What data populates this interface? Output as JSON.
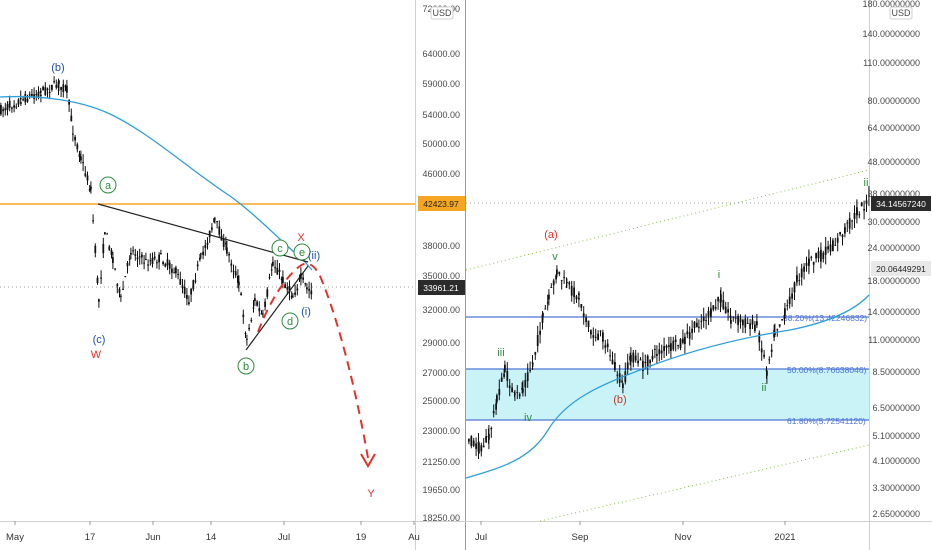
{
  "colors": {
    "ma": "#2e9fd8",
    "resistance": "#f5a623",
    "channel": "#8bc34a",
    "wave_green": "#2e8b3d",
    "wave_blue": "#1f4ea8",
    "wave_red": "#e0342b",
    "fib_fill": "#c9f3f7",
    "fib_line": "#4f74d6",
    "price_badge": "#2b2b2b"
  },
  "chart_data": [
    {
      "type": "line",
      "currency": "USD",
      "x_ticks": [
        "May",
        "17",
        "Jun",
        "14",
        "Jul",
        "19",
        "Au"
      ],
      "y_ticks": [
        "72000.00",
        "64000.00",
        "59000.00",
        "54000.00",
        "50000.00",
        "46000.00",
        "42423.97",
        "38000.00",
        "35000.00",
        "33961.21",
        "32000.00",
        "29000.00",
        "27000.00",
        "25000.00",
        "23000.00",
        "21250.00",
        "19650.00",
        "18250.00"
      ],
      "price_labels": {
        "resistance": "42423.97",
        "last": "33961.21"
      },
      "wave_labels": {
        "b_top": "(b)",
        "c": "(c)",
        "W": "W",
        "a": "a",
        "b": "b",
        "c_small": "c",
        "d": "d",
        "e": "e",
        "X": "X",
        "ii": "(ii)",
        "i": "(i)",
        "Y": "Y"
      },
      "levels": {
        "resistance": 42423.97,
        "last": 33961.21
      }
    },
    {
      "type": "line",
      "currency": "USD",
      "x_ticks": [
        "Jul",
        "Sep",
        "Nov",
        "2021"
      ],
      "y_ticks": [
        "180.00000000",
        "140.00000000",
        "110.00000000",
        "80.00000000",
        "64.00000000",
        "48.00000000",
        "38.00000000",
        "34.14567240",
        "30.00000000",
        "24.00000000",
        "20.06449291",
        "18.00000000",
        "14.00000000",
        "11.00000000",
        "8.50000000",
        "6.50000000",
        "5.10000000",
        "4.10000000",
        "3.30000000",
        "2.65000000"
      ],
      "price_labels": {
        "last": "34.14567240",
        "blue": "20.06449291"
      },
      "wave_labels": {
        "a": "(a)",
        "v": "v",
        "iii": "iii",
        "iv": "iv",
        "b": "(b)",
        "i": "i",
        "ii": "ii",
        "ii_top": "ii"
      },
      "fib_levels": [
        {
          "label": "38.20%(13.42246832)",
          "value": 13.42246832
        },
        {
          "label": "50.00%(8.76638046)",
          "value": 8.76638046
        },
        {
          "label": "61.80%(5.72541120)",
          "value": 5.7254112
        }
      ]
    }
  ]
}
